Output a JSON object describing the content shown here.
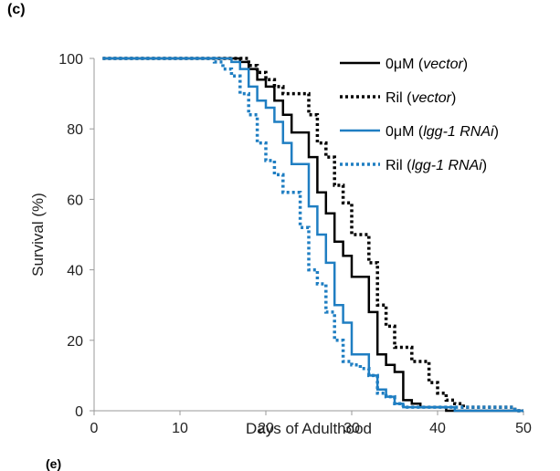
{
  "panel_label": "(c)",
  "cut_label": "(e)",
  "chart_data": {
    "type": "line",
    "title": "",
    "xlabel": "Days of Adulthood",
    "ylabel": "Survival (%)",
    "xlim": [
      0,
      50
    ],
    "ylim": [
      0,
      100
    ],
    "xticks": [
      "0",
      "10",
      "20",
      "30",
      "40",
      "50"
    ],
    "yticks": [
      "0",
      "20",
      "40",
      "60",
      "80",
      "100"
    ],
    "grid": false,
    "legend_position": "top-right",
    "series": [
      {
        "name": "0μM (vector)",
        "label_plain": "0μM (",
        "label_italic": "vector",
        "label_tail": ")",
        "color": "#000000",
        "style": "solid",
        "x": [
          1,
          17,
          18,
          19,
          20,
          21,
          22,
          23,
          24,
          25,
          26,
          27,
          28,
          29,
          30,
          31,
          32,
          33,
          34,
          35,
          36,
          37,
          38,
          39,
          40,
          41,
          42,
          43,
          44,
          45,
          46,
          47,
          48,
          49,
          50
        ],
        "y": [
          100,
          99,
          97,
          94,
          92,
          88,
          84,
          79,
          79,
          72,
          62,
          56,
          48,
          44,
          38,
          38,
          28,
          16,
          13,
          11,
          3,
          2,
          1,
          1,
          1,
          0,
          0,
          0,
          0,
          0,
          0,
          0,
          0,
          0,
          0
        ]
      },
      {
        "name": "Ril (vector)",
        "label_plain": "Ril (",
        "label_italic": "vector",
        "label_tail": ")",
        "color": "#000000",
        "style": "dotted",
        "x": [
          1,
          17,
          18,
          19,
          20,
          21,
          22,
          23,
          24,
          25,
          26,
          27,
          28,
          29,
          30,
          31,
          32,
          33,
          34,
          35,
          36,
          37,
          38,
          39,
          40,
          41,
          42,
          43,
          44,
          45,
          46,
          47,
          48,
          49,
          50
        ],
        "y": [
          100,
          100,
          98,
          96,
          94,
          92,
          90,
          90,
          90,
          84,
          76,
          72,
          64,
          59,
          50,
          50,
          42,
          30,
          24,
          18,
          18,
          14,
          14,
          8,
          5,
          3,
          2,
          1,
          1,
          1,
          1,
          1,
          1,
          0,
          0
        ]
      },
      {
        "name": "0μM (lgg-1 RNAi)",
        "label_plain": "0μM (",
        "label_italic": "lgg-1 RNAi",
        "label_tail": ")",
        "color": "#1f7ec2",
        "style": "solid",
        "x": [
          1,
          16,
          17,
          18,
          19,
          20,
          21,
          22,
          23,
          24,
          25,
          26,
          27,
          28,
          29,
          30,
          31,
          32,
          33,
          34,
          35,
          36,
          37,
          38,
          39,
          40,
          41,
          42,
          43,
          44,
          45,
          46,
          47,
          48,
          49,
          50
        ],
        "y": [
          100,
          99,
          97,
          92,
          88,
          86,
          82,
          76,
          70,
          70,
          58,
          50,
          42,
          30,
          25,
          16,
          16,
          10,
          6,
          4,
          2,
          1,
          1,
          1,
          1,
          1,
          1,
          0,
          0,
          0,
          0,
          0,
          0,
          0,
          0,
          0
        ]
      },
      {
        "name": "Ril (lgg-1 RNAi)",
        "label_plain": "Ril (",
        "label_italic": "lgg-1 RNAi",
        "label_tail": ")",
        "color": "#1f7ec2",
        "style": "dotted",
        "x": [
          1,
          14,
          15,
          16,
          17,
          18,
          19,
          20,
          21,
          22,
          23,
          24,
          25,
          26,
          27,
          28,
          29,
          30,
          31,
          32,
          33,
          34,
          35,
          36,
          37,
          38,
          39,
          40,
          41,
          42,
          43,
          44,
          45,
          46,
          47,
          48,
          49,
          50
        ],
        "y": [
          100,
          99,
          97,
          95,
          90,
          84,
          76,
          71,
          67,
          62,
          62,
          52,
          40,
          36,
          28,
          20,
          14,
          13,
          12,
          10,
          5,
          4,
          2,
          1,
          1,
          1,
          1,
          1,
          1,
          1,
          1,
          1,
          1,
          1,
          1,
          1,
          0,
          0
        ]
      }
    ]
  }
}
